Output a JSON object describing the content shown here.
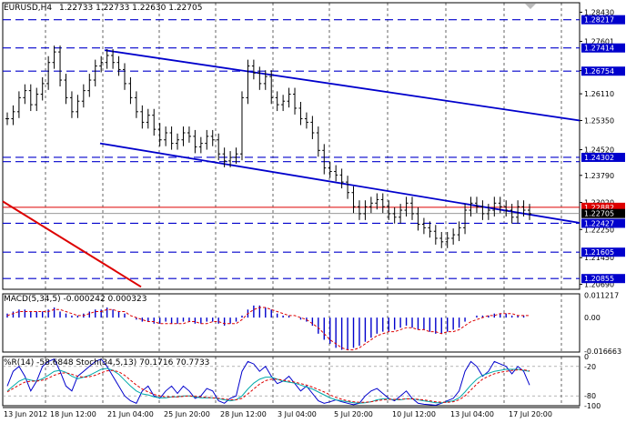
{
  "colors": {
    "bars": "#000000",
    "level_line": "#0000cc",
    "channel": "#0000cc",
    "trendline": "#dd0000",
    "price_line": "#dd0000",
    "label_bg": "#0000cc",
    "label_bg_red": "#dd0000",
    "macd_hist": "#0000cc",
    "macd_signal": "#dd0000",
    "stoch_main": "#0000cc",
    "stoch_signal": "#dd0000",
    "stoch_wpr": "#00aaaa"
  },
  "header": {
    "symbol": "EURUSD,H4",
    "ohlc": "1.22733 1.22733 1.22630 1.22705"
  },
  "chart_data": [
    {
      "type": "candlestick",
      "title": "EURUSD,H4",
      "ylim": [
        1.2055,
        1.287
      ],
      "price_ticks": [
        "1.28430",
        "1.27601",
        "1.26770",
        "1.26110",
        "1.25350",
        "1.24520",
        "1.23790",
        "1.23020",
        "1.22250",
        "1.21450",
        "1.20690"
      ],
      "levels": [
        {
          "value": 1.28217,
          "label": "1.28217"
        },
        {
          "value": 1.27414,
          "label": "1.27414"
        },
        {
          "value": 1.26754,
          "label": "1.26754"
        },
        {
          "value": 1.24302,
          "label": "1.24302"
        },
        {
          "value": 1.2418,
          "label": ""
        },
        {
          "value": 1.22427,
          "label": "1.22427"
        },
        {
          "value": 1.21605,
          "label": "1.21605"
        },
        {
          "value": 1.20855,
          "label": "1.20855"
        }
      ],
      "current_price": {
        "value": 1.22705,
        "label": "1.22705"
      },
      "red_level": {
        "value": 1.22882,
        "label": "1.22882"
      },
      "x_labels": [
        "13 Jun 2012",
        "18 Jun 12:00",
        "21 Jun 04:00",
        "25 Jun 20:00",
        "28 Jun 12:00",
        "3 Jul 04:00",
        "5 Jul 20:00",
        "10 Jul 12:00",
        "13 Jul 04:00",
        "17 Jul 20:00"
      ],
      "closes": [
        1.254,
        1.256,
        1.26,
        1.262,
        1.258,
        1.261,
        1.264,
        1.27,
        1.273,
        1.265,
        1.26,
        1.256,
        1.259,
        1.262,
        1.265,
        1.269,
        1.27,
        1.272,
        1.27,
        1.268,
        1.264,
        1.26,
        1.256,
        1.253,
        1.255,
        1.251,
        1.248,
        1.25,
        1.247,
        1.248,
        1.25,
        1.249,
        1.246,
        1.247,
        1.249,
        1.248,
        1.244,
        1.242,
        1.243,
        1.244,
        1.26,
        1.269,
        1.267,
        1.264,
        1.266,
        1.26,
        1.258,
        1.259,
        1.261,
        1.257,
        1.254,
        1.253,
        1.25,
        1.245,
        1.24,
        1.239,
        1.238,
        1.236,
        1.233,
        1.229,
        1.227,
        1.229,
        1.23,
        1.231,
        1.229,
        1.227,
        1.226,
        1.228,
        1.23,
        1.227,
        1.224,
        1.223,
        1.222,
        1.22,
        1.219,
        1.22,
        1.221,
        1.223,
        1.228,
        1.23,
        1.229,
        1.227,
        1.228,
        1.23,
        1.229,
        1.228,
        1.226,
        1.229,
        1.228,
        1.227
      ]
    },
    {
      "type": "bar",
      "title": "MACD(5,34,5) -0.000242 0.000323",
      "ylim": [
        -0.0171,
        0.0118
      ],
      "y_ticks": [
        "0.011217",
        "0.00",
        "-0.016663"
      ],
      "histogram": [
        0.002,
        0.003,
        0.004,
        0.004,
        0.003,
        0.003,
        0.003,
        0.004,
        0.005,
        0.003,
        0.002,
        0.001,
        0.001,
        0.002,
        0.003,
        0.004,
        0.004,
        0.005,
        0.004,
        0.003,
        0.002,
        0.0,
        -0.001,
        -0.002,
        -0.002,
        -0.003,
        -0.003,
        -0.002,
        -0.003,
        -0.003,
        -0.002,
        -0.002,
        -0.003,
        -0.003,
        -0.002,
        -0.002,
        -0.003,
        -0.004,
        -0.003,
        -0.002,
        0.001,
        0.004,
        0.006,
        0.006,
        0.005,
        0.004,
        0.002,
        0.001,
        0.001,
        0.0,
        -0.001,
        -0.002,
        -0.004,
        -0.008,
        -0.011,
        -0.013,
        -0.015,
        -0.016,
        -0.016,
        -0.015,
        -0.014,
        -0.012,
        -0.01,
        -0.008,
        -0.007,
        -0.007,
        -0.006,
        -0.005,
        -0.004,
        -0.005,
        -0.006,
        -0.006,
        -0.007,
        -0.008,
        -0.008,
        -0.007,
        -0.006,
        -0.005,
        -0.002,
        0.0,
        0.001,
        0.001,
        0.001,
        0.002,
        0.002,
        0.002,
        0.001,
        0.001,
        0.001,
        0.0
      ],
      "signal": [
        0.001,
        0.002,
        0.003,
        0.003,
        0.003,
        0.003,
        0.003,
        0.003,
        0.004,
        0.004,
        0.003,
        0.002,
        0.001,
        0.001,
        0.002,
        0.003,
        0.003,
        0.004,
        0.004,
        0.003,
        0.003,
        0.001,
        0.0,
        -0.001,
        -0.002,
        -0.002,
        -0.003,
        -0.003,
        -0.003,
        -0.003,
        -0.003,
        -0.002,
        -0.002,
        -0.003,
        -0.003,
        -0.002,
        -0.002,
        -0.003,
        -0.003,
        -0.003,
        -0.001,
        0.002,
        0.004,
        0.005,
        0.005,
        0.004,
        0.003,
        0.002,
        0.001,
        0.001,
        0.0,
        -0.001,
        -0.003,
        -0.005,
        -0.008,
        -0.011,
        -0.013,
        -0.015,
        -0.016,
        -0.016,
        -0.015,
        -0.013,
        -0.011,
        -0.009,
        -0.008,
        -0.007,
        -0.007,
        -0.006,
        -0.005,
        -0.005,
        -0.006,
        -0.006,
        -0.007,
        -0.007,
        -0.008,
        -0.007,
        -0.007,
        -0.006,
        -0.004,
        -0.002,
        -0.001,
        0.0,
        0.001,
        0.001,
        0.002,
        0.002,
        0.002,
        0.001,
        0.001,
        0.001
      ]
    },
    {
      "type": "line",
      "title": "%R(14) -58.6848  Stoch(34,5,13) 70.1716 70.7733",
      "ylim": [
        -100,
        0
      ],
      "y_ticks": [
        "0",
        "-20",
        "-80",
        "-100"
      ],
      "series": [
        {
          "name": "%R(14)",
          "values": [
            -60,
            -30,
            -20,
            -40,
            -70,
            -50,
            -20,
            -10,
            -5,
            -30,
            -60,
            -70,
            -40,
            -30,
            -20,
            -10,
            -5,
            -20,
            -40,
            -60,
            -80,
            -90,
            -95,
            -70,
            -60,
            -80,
            -85,
            -70,
            -60,
            -75,
            -60,
            -70,
            -85,
            -80,
            -65,
            -70,
            -90,
            -95,
            -85,
            -80,
            -30,
            -10,
            -15,
            -30,
            -20,
            -40,
            -55,
            -50,
            -40,
            -55,
            -70,
            -60,
            -75,
            -90,
            -95,
            -92,
            -88,
            -92,
            -95,
            -98,
            -95,
            -80,
            -70,
            -65,
            -75,
            -85,
            -90,
            -80,
            -70,
            -85,
            -95,
            -97,
            -98,
            -99,
            -95,
            -90,
            -85,
            -70,
            -30,
            -10,
            -20,
            -40,
            -30,
            -10,
            -15,
            -20,
            -35,
            -20,
            -30,
            -58
          ]
        },
        {
          "name": "Stoch(34,5,13)",
          "values": [
            -70,
            -60,
            -50,
            -45,
            -48,
            -50,
            -45,
            -38,
            -30,
            -28,
            -32,
            -40,
            -45,
            -42,
            -38,
            -32,
            -26,
            -24,
            -28,
            -36,
            -48,
            -60,
            -70,
            -76,
            -78,
            -82,
            -84,
            -84,
            -82,
            -82,
            -80,
            -80,
            -82,
            -84,
            -84,
            -84,
            -86,
            -88,
            -90,
            -88,
            -80,
            -66,
            -54,
            -46,
            -42,
            -42,
            -46,
            -50,
            -52,
            -54,
            -58,
            -62,
            -66,
            -72,
            -78,
            -84,
            -88,
            -90,
            -92,
            -94,
            -95,
            -94,
            -92,
            -88,
            -86,
            -86,
            -88,
            -88,
            -86,
            -86,
            -88,
            -90,
            -92,
            -94,
            -94,
            -92,
            -90,
            -84,
            -72,
            -58,
            -46,
            -38,
            -34,
            -30,
            -28,
            -26,
            -26,
            -26,
            -28,
            -30
          ]
        },
        {
          "name": "Signal",
          "values": [
            -72,
            -65,
            -58,
            -52,
            -50,
            -50,
            -48,
            -44,
            -38,
            -34,
            -33,
            -36,
            -40,
            -42,
            -41,
            -38,
            -33,
            -29,
            -28,
            -31,
            -38,
            -48,
            -58,
            -66,
            -72,
            -77,
            -80,
            -82,
            -82,
            -82,
            -81,
            -80,
            -81,
            -82,
            -83,
            -84,
            -85,
            -86,
            -88,
            -88,
            -85,
            -76,
            -66,
            -56,
            -49,
            -46,
            -46,
            -48,
            -50,
            -52,
            -55,
            -58,
            -62,
            -67,
            -72,
            -78,
            -83,
            -87,
            -90,
            -92,
            -93,
            -93,
            -92,
            -90,
            -88,
            -87,
            -87,
            -87,
            -86,
            -86,
            -87,
            -88,
            -90,
            -92,
            -93,
            -93,
            -92,
            -88,
            -80,
            -68,
            -56,
            -46,
            -40,
            -35,
            -32,
            -30,
            -28,
            -27,
            -27,
            -29
          ]
        }
      ]
    }
  ]
}
